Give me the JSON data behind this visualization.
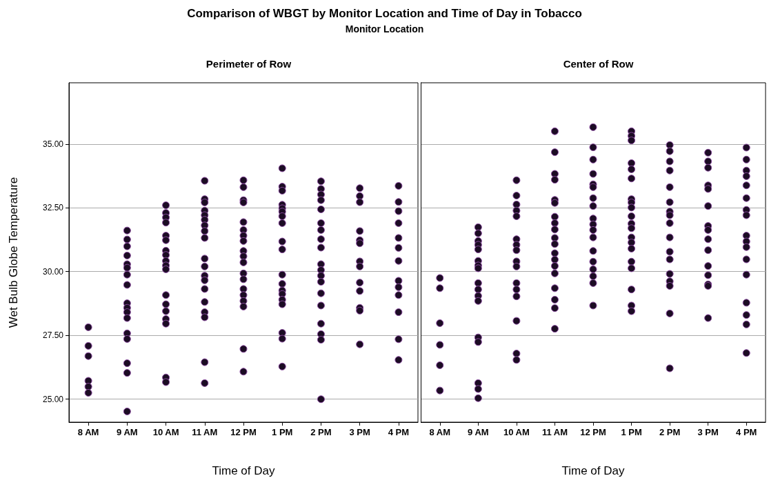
{
  "chart_data": [
    {
      "type": "scatter",
      "title": "Perimeter of Row",
      "annotations": [
        "Comparison of WBGT by Monitor Location and Time of Day in Tobacco",
        "Monitor Location"
      ],
      "xlabel": "Time of Day",
      "ylabel": "Wet Bulb Globe Temperature",
      "categories": [
        "8 AM",
        "9 AM",
        "10 AM",
        "11 AM",
        "12 PM",
        "1 PM",
        "2 PM",
        "3 PM",
        "4 PM"
      ],
      "ylim": [
        24.1,
        37.4
      ],
      "yticks": [
        {
          "value": 25,
          "label": "25.00"
        },
        {
          "value": 27.5,
          "label": "27.50"
        },
        {
          "value": 30,
          "label": "30.00"
        },
        {
          "value": 32.5,
          "label": "32.50"
        },
        {
          "value": 35,
          "label": "35.00"
        }
      ],
      "grid": "y",
      "marker": "circle",
      "series": [
        {
          "color": "#1c0c24",
          "x": [
            "8 AM",
            "8 AM",
            "8 AM",
            "8 AM",
            "8 AM",
            "8 AM",
            "9 AM",
            "9 AM",
            "9 AM",
            "9 AM",
            "9 AM",
            "9 AM",
            "9 AM",
            "9 AM",
            "9 AM",
            "9 AM",
            "9 AM",
            "9 AM",
            "9 AM",
            "9 AM",
            "9 AM",
            "9 AM",
            "9 AM",
            "10 AM",
            "10 AM",
            "10 AM",
            "10 AM",
            "10 AM",
            "10 AM",
            "10 AM",
            "10 AM",
            "10 AM",
            "10 AM",
            "10 AM",
            "10 AM",
            "10 AM",
            "10 AM",
            "10 AM",
            "10 AM",
            "10 AM",
            "10 AM",
            "11 AM",
            "11 AM",
            "11 AM",
            "11 AM",
            "11 AM",
            "11 AM",
            "11 AM",
            "11 AM",
            "11 AM",
            "11 AM",
            "11 AM",
            "11 AM",
            "11 AM",
            "11 AM",
            "11 AM",
            "11 AM",
            "11 AM",
            "11 AM",
            "11 AM",
            "12 PM",
            "12 PM",
            "12 PM",
            "12 PM",
            "12 PM",
            "12 PM",
            "12 PM",
            "12 PM",
            "12 PM",
            "12 PM",
            "12 PM",
            "12 PM",
            "12 PM",
            "12 PM",
            "12 PM",
            "12 PM",
            "12 PM",
            "12 PM",
            "12 PM",
            "1 PM",
            "1 PM",
            "1 PM",
            "1 PM",
            "1 PM",
            "1 PM",
            "1 PM",
            "1 PM",
            "1 PM",
            "1 PM",
            "1 PM",
            "1 PM",
            "1 PM",
            "1 PM",
            "1 PM",
            "1 PM",
            "1 PM",
            "1 PM",
            "1 PM",
            "2 PM",
            "2 PM",
            "2 PM",
            "2 PM",
            "2 PM",
            "2 PM",
            "2 PM",
            "2 PM",
            "2 PM",
            "2 PM",
            "2 PM",
            "2 PM",
            "2 PM",
            "2 PM",
            "2 PM",
            "2 PM",
            "2 PM",
            "2 PM",
            "2 PM",
            "3 PM",
            "3 PM",
            "3 PM",
            "3 PM",
            "3 PM",
            "3 PM",
            "3 PM",
            "3 PM",
            "3 PM",
            "3 PM",
            "3 PM",
            "3 PM",
            "3 PM",
            "4 PM",
            "4 PM",
            "4 PM",
            "4 PM",
            "4 PM",
            "4 PM",
            "4 PM",
            "4 PM",
            "4 PM",
            "4 PM",
            "4 PM",
            "4 PM",
            "4 PM"
          ],
          "values": [
            27.82,
            27.09,
            26.69,
            25.72,
            25.49,
            25.25,
            31.61,
            31.26,
            30.99,
            30.63,
            30.29,
            30.15,
            29.88,
            29.48,
            28.76,
            28.58,
            28.41,
            28.18,
            27.58,
            27.36,
            26.41,
            26.03,
            24.52,
            32.6,
            32.3,
            32.12,
            31.92,
            31.41,
            31.23,
            30.82,
            30.65,
            30.42,
            30.24,
            30.09,
            29.08,
            28.72,
            28.45,
            28.14,
            27.96,
            25.85,
            25.67,
            33.56,
            32.84,
            32.71,
            32.39,
            32.21,
            32.03,
            31.81,
            31.59,
            31.32,
            30.51,
            30.2,
            29.84,
            29.66,
            29.32,
            28.81,
            28.41,
            28.21,
            26.45,
            25.63,
            33.58,
            33.31,
            32.8,
            32.71,
            31.94,
            31.63,
            31.41,
            31.2,
            30.81,
            30.6,
            30.36,
            29.93,
            29.7,
            29.32,
            29.08,
            28.85,
            28.63,
            26.97,
            26.08,
            34.05,
            33.33,
            33.17,
            32.62,
            32.48,
            32.35,
            32.17,
            31.9,
            31.18,
            30.87,
            29.88,
            29.52,
            29.26,
            29.12,
            28.9,
            28.72,
            27.6,
            27.37,
            26.28,
            33.54,
            33.24,
            33.02,
            32.8,
            32.44,
            31.9,
            31.63,
            31.27,
            30.94,
            30.29,
            30.06,
            29.84,
            29.6,
            29.15,
            28.67,
            27.96,
            27.55,
            27.33,
            25.0,
            33.27,
            32.96,
            32.72,
            31.59,
            31.23,
            31.11,
            30.4,
            30.2,
            29.57,
            29.24,
            28.58,
            28.47,
            27.15,
            33.36,
            32.73,
            32.37,
            31.9,
            31.32,
            30.93,
            30.42,
            29.64,
            29.39,
            29.08,
            28.41,
            27.35,
            26.54
          ]
        }
      ]
    },
    {
      "type": "scatter",
      "title": "Center of Row",
      "xlabel": "Time of Day",
      "categories": [
        "8 AM",
        "9 AM",
        "10 AM",
        "11 AM",
        "12 PM",
        "1 PM",
        "2 PM",
        "3 PM",
        "4 PM"
      ],
      "ylim": [
        24.1,
        37.4
      ],
      "yticks": [
        {
          "value": 25,
          "label": null
        },
        {
          "value": 27.5,
          "label": null
        },
        {
          "value": 30,
          "label": null
        },
        {
          "value": 32.5,
          "label": null
        },
        {
          "value": 35,
          "label": null
        }
      ],
      "tick_labels": "x",
      "grid": "y",
      "marker": "circle",
      "series": [
        {
          "color": "#1c0c24",
          "x": [
            "8 AM",
            "8 AM",
            "8 AM",
            "8 AM",
            "8 AM",
            "8 AM",
            "9 AM",
            "9 AM",
            "9 AM",
            "9 AM",
            "9 AM",
            "9 AM",
            "9 AM",
            "9 AM",
            "9 AM",
            "9 AM",
            "9 AM",
            "9 AM",
            "9 AM",
            "9 AM",
            "9 AM",
            "9 AM",
            "9 AM",
            "10 AM",
            "10 AM",
            "10 AM",
            "10 AM",
            "10 AM",
            "10 AM",
            "10 AM",
            "10 AM",
            "10 AM",
            "10 AM",
            "10 AM",
            "10 AM",
            "10 AM",
            "10 AM",
            "10 AM",
            "10 AM",
            "11 AM",
            "11 AM",
            "11 AM",
            "11 AM",
            "11 AM",
            "11 AM",
            "11 AM",
            "11 AM",
            "11 AM",
            "11 AM",
            "11 AM",
            "11 AM",
            "11 AM",
            "11 AM",
            "11 AM",
            "11 AM",
            "11 AM",
            "11 AM",
            "11 AM",
            "12 PM",
            "12 PM",
            "12 PM",
            "12 PM",
            "12 PM",
            "12 PM",
            "12 PM",
            "12 PM",
            "12 PM",
            "12 PM",
            "12 PM",
            "12 PM",
            "12 PM",
            "12 PM",
            "12 PM",
            "12 PM",
            "12 PM",
            "12 PM",
            "1 PM",
            "1 PM",
            "1 PM",
            "1 PM",
            "1 PM",
            "1 PM",
            "1 PM",
            "1 PM",
            "1 PM",
            "1 PM",
            "1 PM",
            "1 PM",
            "1 PM",
            "1 PM",
            "1 PM",
            "1 PM",
            "1 PM",
            "1 PM",
            "1 PM",
            "1 PM",
            "2 PM",
            "2 PM",
            "2 PM",
            "2 PM",
            "2 PM",
            "2 PM",
            "2 PM",
            "2 PM",
            "2 PM",
            "2 PM",
            "2 PM",
            "2 PM",
            "2 PM",
            "2 PM",
            "2 PM",
            "2 PM",
            "2 PM",
            "3 PM",
            "3 PM",
            "3 PM",
            "3 PM",
            "3 PM",
            "3 PM",
            "3 PM",
            "3 PM",
            "3 PM",
            "3 PM",
            "3 PM",
            "3 PM",
            "3 PM",
            "3 PM",
            "3 PM",
            "4 PM",
            "4 PM",
            "4 PM",
            "4 PM",
            "4 PM",
            "4 PM",
            "4 PM",
            "4 PM",
            "4 PM",
            "4 PM",
            "4 PM",
            "4 PM",
            "4 PM",
            "4 PM",
            "4 PM",
            "4 PM",
            "4 PM"
          ],
          "values": [
            29.75,
            29.35,
            27.98,
            27.13,
            26.33,
            25.34,
            31.74,
            31.5,
            31.2,
            31.05,
            30.87,
            30.42,
            30.24,
            30.13,
            29.55,
            29.3,
            29.05,
            28.85,
            27.42,
            27.24,
            25.63,
            25.4,
            25.04,
            33.58,
            32.98,
            32.63,
            32.39,
            32.17,
            31.27,
            31.05,
            30.84,
            30.4,
            30.2,
            29.55,
            29.3,
            29.03,
            28.07,
            26.79,
            26.54,
            35.5,
            34.68,
            33.83,
            33.6,
            32.81,
            32.69,
            32.15,
            31.9,
            31.65,
            31.32,
            31.08,
            30.72,
            30.47,
            30.22,
            29.93,
            29.35,
            28.9,
            28.57,
            27.76,
            35.66,
            34.87,
            34.39,
            33.83,
            33.42,
            33.31,
            32.88,
            32.57,
            32.08,
            31.85,
            31.63,
            31.34,
            30.81,
            30.39,
            30.09,
            29.82,
            29.55,
            28.67,
            35.5,
            35.32,
            35.14,
            34.25,
            34.01,
            33.65,
            32.84,
            32.71,
            32.51,
            32.17,
            31.88,
            31.7,
            31.34,
            31.14,
            30.9,
            30.39,
            30.13,
            29.3,
            28.67,
            28.45,
            34.96,
            34.72,
            34.32,
            33.96,
            33.31,
            32.72,
            32.35,
            32.21,
            31.9,
            31.34,
            30.78,
            30.48,
            29.91,
            29.62,
            29.44,
            28.36,
            26.21,
            34.66,
            34.32,
            34.07,
            33.38,
            33.24,
            32.57,
            31.79,
            31.63,
            31.27,
            30.84,
            30.22,
            29.86,
            29.5,
            29.44,
            28.18,
            34.86,
            34.39,
            33.96,
            33.74,
            33.38,
            32.88,
            32.42,
            32.21,
            31.41,
            31.18,
            30.96,
            30.48,
            29.88,
            28.78,
            28.3,
            27.93,
            26.81
          ]
        }
      ]
    }
  ]
}
